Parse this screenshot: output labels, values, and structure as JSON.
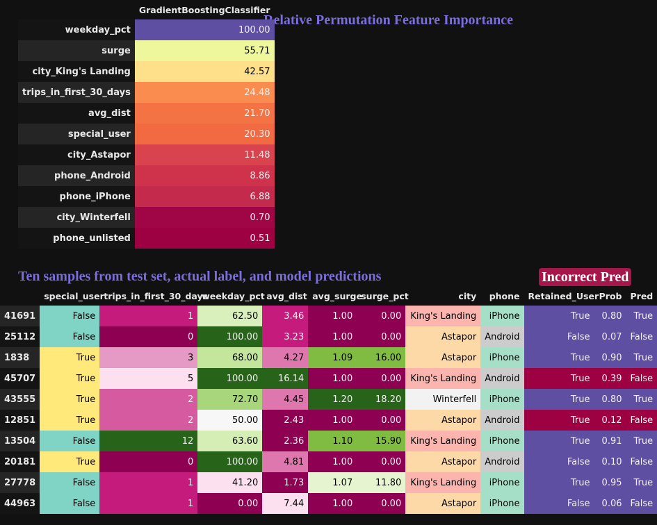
{
  "importance": {
    "title": "Relative Permutation Feature Importance",
    "column": "GradientBoostingClassifier",
    "rows": [
      {
        "feature": "weekday_pct",
        "value": "100.00",
        "bg": "#5e4fa2",
        "fg": "#f1f1f1"
      },
      {
        "feature": "surge",
        "value": "55.71",
        "bg": "#eef79c",
        "fg": "#000000"
      },
      {
        "feature": "city_King's Landing",
        "value": "42.57",
        "bg": "#fee08b",
        "fg": "#000000"
      },
      {
        "feature": "trips_in_first_30_days",
        "value": "24.48",
        "bg": "#fa8c4f",
        "fg": "#f1f1f1"
      },
      {
        "feature": "avg_dist",
        "value": "21.70",
        "bg": "#f47345",
        "fg": "#f1f1f1"
      },
      {
        "feature": "special_user",
        "value": "20.30",
        "bg": "#f26a42",
        "fg": "#f1f1f1"
      },
      {
        "feature": "city_Astapor",
        "value": "11.48",
        "bg": "#d9434d",
        "fg": "#f1f1f1"
      },
      {
        "feature": "phone_Android",
        "value": "8.86",
        "bg": "#cf334b",
        "fg": "#f1f1f1"
      },
      {
        "feature": "phone_iPhone",
        "value": "6.88",
        "bg": "#c32a4b",
        "fg": "#f1f1f1"
      },
      {
        "feature": "city_Winterfell",
        "value": "0.70",
        "bg": "#a00545",
        "fg": "#f1f1f1"
      },
      {
        "feature": "phone_unlisted",
        "value": "0.51",
        "bg": "#9e0142",
        "fg": "#f1f1f1"
      }
    ]
  },
  "samples": {
    "title": "Ten samples from test set, actual label, and model predictions",
    "badge": "Incorrect Pred",
    "columns": [
      "",
      "special_user",
      "trips_in_first_30_days",
      "weekday_pct",
      "avg_dist",
      "avg_surge",
      "surge_pct",
      "city",
      "phone",
      "Retained_User",
      "Prob",
      "Pred"
    ],
    "rows": [
      {
        "idx": "41691",
        "cells": [
          {
            "v": "False",
            "bg": "#80d4c5",
            "fg": "#000"
          },
          {
            "v": "1",
            "bg": "#c51b7d",
            "fg": "#f1f1f1"
          },
          {
            "v": "62.50",
            "bg": "#d9f0bd",
            "fg": "#000"
          },
          {
            "v": "3.46",
            "bg": "#c51b7d",
            "fg": "#f1f1f1"
          },
          {
            "v": "1.00",
            "bg": "#8e0152",
            "fg": "#f1f1f1"
          },
          {
            "v": "0.00",
            "bg": "#8e0152",
            "fg": "#f1f1f1"
          },
          {
            "v": "King's Landing",
            "bg": "#fbb4ae",
            "fg": "#000"
          },
          {
            "v": "iPhone",
            "bg": "#a6dfc8",
            "fg": "#000"
          },
          {
            "v": "True",
            "bg": "#5e4fa2",
            "fg": "#f1f1f1"
          },
          {
            "v": "0.80",
            "bg": "#5e4fa2",
            "fg": "#f1f1f1"
          },
          {
            "v": "True",
            "bg": "#5e4fa2",
            "fg": "#f1f1f1"
          }
        ]
      },
      {
        "idx": "25112",
        "cells": [
          {
            "v": "False",
            "bg": "#80d4c5",
            "fg": "#000"
          },
          {
            "v": "0",
            "bg": "#8e0152",
            "fg": "#f1f1f1"
          },
          {
            "v": "100.00",
            "bg": "#276419",
            "fg": "#f1f1f1"
          },
          {
            "v": "3.23",
            "bg": "#c51b7d",
            "fg": "#f1f1f1"
          },
          {
            "v": "1.00",
            "bg": "#8e0152",
            "fg": "#f1f1f1"
          },
          {
            "v": "0.00",
            "bg": "#8e0152",
            "fg": "#f1f1f1"
          },
          {
            "v": "Astapor",
            "bg": "#fdd9a8",
            "fg": "#000"
          },
          {
            "v": "Android",
            "bg": "#cccccc",
            "fg": "#000"
          },
          {
            "v": "False",
            "bg": "#5e4fa2",
            "fg": "#f1f1f1"
          },
          {
            "v": "0.07",
            "bg": "#5e4fa2",
            "fg": "#f1f1f1"
          },
          {
            "v": "False",
            "bg": "#5e4fa2",
            "fg": "#f1f1f1"
          }
        ]
      },
      {
        "idx": "1838",
        "cells": [
          {
            "v": "True",
            "bg": "#fee97a",
            "fg": "#000"
          },
          {
            "v": "3",
            "bg": "#e59ac6",
            "fg": "#000"
          },
          {
            "v": "68.00",
            "bg": "#c4e59c",
            "fg": "#000"
          },
          {
            "v": "4.27",
            "bg": "#de77ae",
            "fg": "#000"
          },
          {
            "v": "1.09",
            "bg": "#7fbc41",
            "fg": "#000"
          },
          {
            "v": "16.00",
            "bg": "#7fbc41",
            "fg": "#000"
          },
          {
            "v": "Astapor",
            "bg": "#fdd9a8",
            "fg": "#000"
          },
          {
            "v": "iPhone",
            "bg": "#a6dfc8",
            "fg": "#000"
          },
          {
            "v": "True",
            "bg": "#5e4fa2",
            "fg": "#f1f1f1"
          },
          {
            "v": "0.90",
            "bg": "#5e4fa2",
            "fg": "#f1f1f1"
          },
          {
            "v": "True",
            "bg": "#5e4fa2",
            "fg": "#f1f1f1"
          }
        ]
      },
      {
        "idx": "45707",
        "cells": [
          {
            "v": "True",
            "bg": "#fee97a",
            "fg": "#000"
          },
          {
            "v": "5",
            "bg": "#fde0ef",
            "fg": "#000"
          },
          {
            "v": "100.00",
            "bg": "#276419",
            "fg": "#f1f1f1"
          },
          {
            "v": "16.14",
            "bg": "#276419",
            "fg": "#f1f1f1"
          },
          {
            "v": "1.00",
            "bg": "#8e0152",
            "fg": "#f1f1f1"
          },
          {
            "v": "0.00",
            "bg": "#8e0152",
            "fg": "#f1f1f1"
          },
          {
            "v": "King's Landing",
            "bg": "#fbb4ae",
            "fg": "#000"
          },
          {
            "v": "Android",
            "bg": "#cccccc",
            "fg": "#000"
          },
          {
            "v": "True",
            "bg": "#9e0142",
            "fg": "#f1f1f1"
          },
          {
            "v": "0.39",
            "bg": "#9e0142",
            "fg": "#f1f1f1"
          },
          {
            "v": "False",
            "bg": "#9e0142",
            "fg": "#f1f1f1"
          }
        ]
      },
      {
        "idx": "43555",
        "cells": [
          {
            "v": "True",
            "bg": "#fee97a",
            "fg": "#000"
          },
          {
            "v": "2",
            "bg": "#d65a9f",
            "fg": "#f1f1f1"
          },
          {
            "v": "72.70",
            "bg": "#a8d67a",
            "fg": "#000"
          },
          {
            "v": "4.45",
            "bg": "#de77ae",
            "fg": "#000"
          },
          {
            "v": "1.20",
            "bg": "#276419",
            "fg": "#f1f1f1"
          },
          {
            "v": "18.20",
            "bg": "#276419",
            "fg": "#f1f1f1"
          },
          {
            "v": "Winterfell",
            "bg": "#f2f2f2",
            "fg": "#000"
          },
          {
            "v": "iPhone",
            "bg": "#a6dfc8",
            "fg": "#000"
          },
          {
            "v": "True",
            "bg": "#5e4fa2",
            "fg": "#f1f1f1"
          },
          {
            "v": "0.80",
            "bg": "#5e4fa2",
            "fg": "#f1f1f1"
          },
          {
            "v": "True",
            "bg": "#5e4fa2",
            "fg": "#f1f1f1"
          }
        ]
      },
      {
        "idx": "12851",
        "cells": [
          {
            "v": "True",
            "bg": "#fee97a",
            "fg": "#000"
          },
          {
            "v": "2",
            "bg": "#d65a9f",
            "fg": "#f1f1f1"
          },
          {
            "v": "50.00",
            "bg": "#f7f7f7",
            "fg": "#000"
          },
          {
            "v": "2.43",
            "bg": "#8e0152",
            "fg": "#f1f1f1"
          },
          {
            "v": "1.00",
            "bg": "#8e0152",
            "fg": "#f1f1f1"
          },
          {
            "v": "0.00",
            "bg": "#8e0152",
            "fg": "#f1f1f1"
          },
          {
            "v": "Astapor",
            "bg": "#fdd9a8",
            "fg": "#000"
          },
          {
            "v": "Android",
            "bg": "#cccccc",
            "fg": "#000"
          },
          {
            "v": "True",
            "bg": "#9e0142",
            "fg": "#f1f1f1"
          },
          {
            "v": "0.12",
            "bg": "#9e0142",
            "fg": "#f1f1f1"
          },
          {
            "v": "False",
            "bg": "#9e0142",
            "fg": "#f1f1f1"
          }
        ]
      },
      {
        "idx": "13504",
        "cells": [
          {
            "v": "False",
            "bg": "#80d4c5",
            "fg": "#000"
          },
          {
            "v": "12",
            "bg": "#276419",
            "fg": "#f1f1f1"
          },
          {
            "v": "63.60",
            "bg": "#d4eeb6",
            "fg": "#000"
          },
          {
            "v": "2.36",
            "bg": "#8e0152",
            "fg": "#f1f1f1"
          },
          {
            "v": "1.10",
            "bg": "#7fbc41",
            "fg": "#000"
          },
          {
            "v": "15.90",
            "bg": "#7fbc41",
            "fg": "#000"
          },
          {
            "v": "King's Landing",
            "bg": "#fbb4ae",
            "fg": "#000"
          },
          {
            "v": "iPhone",
            "bg": "#a6dfc8",
            "fg": "#000"
          },
          {
            "v": "True",
            "bg": "#5e4fa2",
            "fg": "#f1f1f1"
          },
          {
            "v": "0.91",
            "bg": "#5e4fa2",
            "fg": "#f1f1f1"
          },
          {
            "v": "True",
            "bg": "#5e4fa2",
            "fg": "#f1f1f1"
          }
        ]
      },
      {
        "idx": "20181",
        "cells": [
          {
            "v": "True",
            "bg": "#fee97a",
            "fg": "#000"
          },
          {
            "v": "0",
            "bg": "#8e0152",
            "fg": "#f1f1f1"
          },
          {
            "v": "100.00",
            "bg": "#276419",
            "fg": "#f1f1f1"
          },
          {
            "v": "4.81",
            "bg": "#de77ae",
            "fg": "#000"
          },
          {
            "v": "1.00",
            "bg": "#8e0152",
            "fg": "#f1f1f1"
          },
          {
            "v": "0.00",
            "bg": "#8e0152",
            "fg": "#f1f1f1"
          },
          {
            "v": "Astapor",
            "bg": "#fdd9a8",
            "fg": "#000"
          },
          {
            "v": "Android",
            "bg": "#cccccc",
            "fg": "#000"
          },
          {
            "v": "False",
            "bg": "#5e4fa2",
            "fg": "#f1f1f1"
          },
          {
            "v": "0.10",
            "bg": "#5e4fa2",
            "fg": "#f1f1f1"
          },
          {
            "v": "False",
            "bg": "#5e4fa2",
            "fg": "#f1f1f1"
          }
        ]
      },
      {
        "idx": "27778",
        "cells": [
          {
            "v": "False",
            "bg": "#80d4c5",
            "fg": "#000"
          },
          {
            "v": "1",
            "bg": "#c51b7d",
            "fg": "#f1f1f1"
          },
          {
            "v": "41.20",
            "bg": "#fde0ef",
            "fg": "#000"
          },
          {
            "v": "1.73",
            "bg": "#8e0152",
            "fg": "#f1f1f1"
          },
          {
            "v": "1.07",
            "bg": "#e6f5d0",
            "fg": "#000"
          },
          {
            "v": "11.80",
            "bg": "#e6f5d0",
            "fg": "#000"
          },
          {
            "v": "King's Landing",
            "bg": "#fbb4ae",
            "fg": "#000"
          },
          {
            "v": "iPhone",
            "bg": "#a6dfc8",
            "fg": "#000"
          },
          {
            "v": "True",
            "bg": "#5e4fa2",
            "fg": "#f1f1f1"
          },
          {
            "v": "0.95",
            "bg": "#5e4fa2",
            "fg": "#f1f1f1"
          },
          {
            "v": "True",
            "bg": "#5e4fa2",
            "fg": "#f1f1f1"
          }
        ]
      },
      {
        "idx": "44963",
        "cells": [
          {
            "v": "False",
            "bg": "#80d4c5",
            "fg": "#000"
          },
          {
            "v": "1",
            "bg": "#c51b7d",
            "fg": "#f1f1f1"
          },
          {
            "v": "0.00",
            "bg": "#8e0152",
            "fg": "#f1f1f1"
          },
          {
            "v": "7.44",
            "bg": "#fde0ef",
            "fg": "#000"
          },
          {
            "v": "1.00",
            "bg": "#8e0152",
            "fg": "#f1f1f1"
          },
          {
            "v": "0.00",
            "bg": "#8e0152",
            "fg": "#f1f1f1"
          },
          {
            "v": "Astapor",
            "bg": "#fdd9a8",
            "fg": "#000"
          },
          {
            "v": "iPhone",
            "bg": "#a6dfc8",
            "fg": "#000"
          },
          {
            "v": "False",
            "bg": "#5e4fa2",
            "fg": "#f1f1f1"
          },
          {
            "v": "0.06",
            "bg": "#5e4fa2",
            "fg": "#f1f1f1"
          },
          {
            "v": "False",
            "bg": "#5e4fa2",
            "fg": "#f1f1f1"
          }
        ]
      }
    ]
  }
}
